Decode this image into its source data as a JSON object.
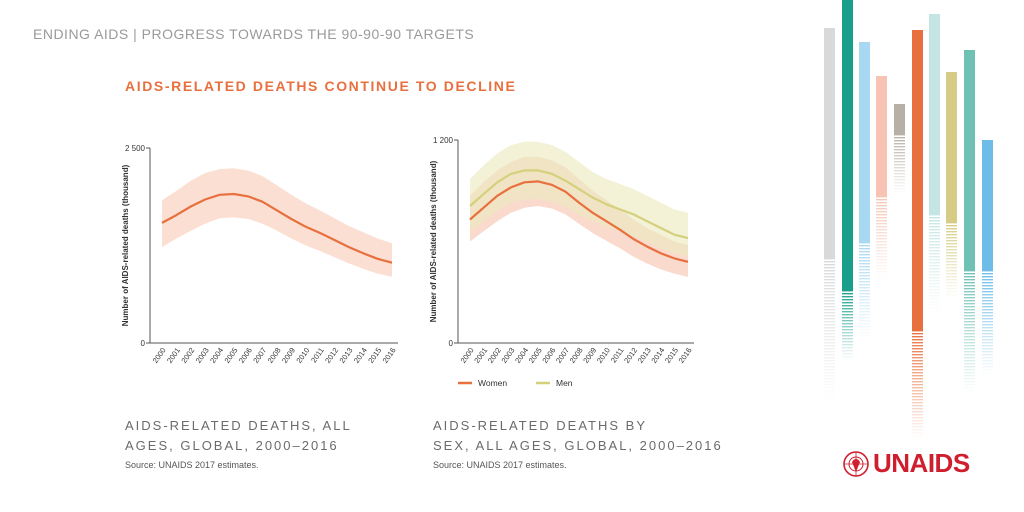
{
  "header": {
    "text": "ENDING AIDS | PROGRESS TOWARDS THE 90-90-90 TARGETS"
  },
  "main_title": "AIDS-RELATED DEATHS CONTINUE TO DECLINE",
  "captions": {
    "left": [
      "AIDS-RELATED DEATHS, ALL",
      "AGES, GLOBAL, 2000–2016"
    ],
    "right": [
      "AIDS-RELATED DEATHS BY",
      "SEX, ALL AGES, GLOBAL, 2000–2016"
    ]
  },
  "sources": {
    "left": "Source: UNAIDS 2017 estimates.",
    "right": "Source: UNAIDS 2017 estimates."
  },
  "logo": {
    "text": "UNAIDS",
    "color": "#cf1f2e"
  },
  "chart_data": [
    {
      "type": "line",
      "title": "AIDS-RELATED DEATHS, ALL AGES, GLOBAL, 2000–2016",
      "ylabel": "Number of AIDS-related deaths (thousand)",
      "ylim": [
        0,
        2500
      ],
      "yticks": [
        "0",
        "2 500"
      ],
      "x": [
        "2000",
        "2001",
        "2002",
        "2003",
        "2004",
        "2005",
        "2006",
        "2007",
        "2008",
        "2009",
        "2010",
        "2011",
        "2012",
        "2013",
        "2014",
        "2015",
        "2016"
      ],
      "series": [
        {
          "color": "#e8703f",
          "band_color": "#fbd7c8",
          "values": [
            1540,
            1640,
            1750,
            1840,
            1900,
            1910,
            1880,
            1810,
            1700,
            1590,
            1490,
            1410,
            1320,
            1230,
            1150,
            1080,
            1030
          ],
          "lower": [
            1230,
            1340,
            1440,
            1530,
            1600,
            1610,
            1590,
            1530,
            1440,
            1340,
            1250,
            1180,
            1100,
            1020,
            950,
            890,
            850
          ],
          "upper": [
            1830,
            1950,
            2080,
            2180,
            2230,
            2240,
            2210,
            2140,
            2020,
            1900,
            1790,
            1700,
            1600,
            1500,
            1420,
            1340,
            1280
          ]
        }
      ]
    },
    {
      "type": "line",
      "title": "AIDS-RELATED DEATHS BY SEX, ALL AGES, GLOBAL, 2000–2016",
      "ylabel": "Number of AIDS-related deaths (thousand)",
      "ylim": [
        0,
        1200
      ],
      "yticks": [
        "0",
        "1 200"
      ],
      "x": [
        "2000",
        "2001",
        "2002",
        "2003",
        "2004",
        "2005",
        "2006",
        "2007",
        "2008",
        "2009",
        "2010",
        "2011",
        "2012",
        "2013",
        "2014",
        "2015",
        "2016"
      ],
      "legend": "bottom",
      "series": [
        {
          "name": "Women",
          "color": "#e8703f",
          "band_color": "#f6c6b0",
          "values": [
            730,
            800,
            870,
            920,
            950,
            955,
            935,
            895,
            830,
            770,
            720,
            670,
            615,
            570,
            530,
            500,
            480
          ],
          "lower": [
            600,
            660,
            720,
            770,
            800,
            810,
            795,
            760,
            705,
            650,
            605,
            560,
            510,
            470,
            435,
            410,
            390
          ],
          "upper": [
            870,
            950,
            1020,
            1070,
            1100,
            1100,
            1080,
            1040,
            970,
            900,
            845,
            790,
            730,
            680,
            640,
            600,
            580
          ]
        },
        {
          "name": "Men",
          "color": "#d4d07c",
          "band_color": "#ece9c0",
          "values": [
            810,
            880,
            950,
            1000,
            1020,
            1020,
            1000,
            960,
            910,
            860,
            820,
            790,
            760,
            720,
            680,
            640,
            620
          ],
          "lower": [
            660,
            720,
            780,
            830,
            850,
            850,
            835,
            805,
            760,
            720,
            685,
            660,
            630,
            595,
            560,
            530,
            510
          ],
          "upper": [
            970,
            1050,
            1120,
            1170,
            1190,
            1190,
            1170,
            1130,
            1070,
            1010,
            970,
            940,
            910,
            870,
            830,
            790,
            770
          ]
        }
      ]
    }
  ],
  "decor_colors": [
    "#d9d9d9",
    "#1a9e8c",
    "#a9d8f2",
    "#f7c4b3",
    "#b7b0a6",
    "#e8703f",
    "#c4e5e3",
    "#d6cc86",
    "#6fc1b4",
    "#6ebde8"
  ]
}
